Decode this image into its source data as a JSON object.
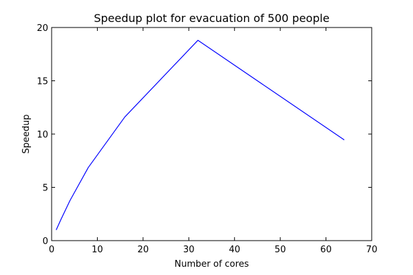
{
  "chart_data": {
    "type": "line",
    "title": "Speedup plot for evacuation of 500 people",
    "xlabel": "Number of cores",
    "ylabel": "Speedup",
    "xlim": [
      0,
      70
    ],
    "ylim": [
      0,
      20
    ],
    "xticks": [
      0,
      10,
      20,
      30,
      40,
      50,
      60,
      70
    ],
    "yticks": [
      0,
      5,
      10,
      15,
      20
    ],
    "xtick_labels": [
      "0",
      "10",
      "20",
      "30",
      "40",
      "50",
      "60",
      "70"
    ],
    "ytick_labels": [
      "0",
      "5",
      "10",
      "15",
      "20"
    ],
    "grid": false,
    "series": [
      {
        "color": "#0000ff",
        "x": [
          1,
          2,
          4,
          8,
          16,
          32,
          64
        ],
        "y": [
          1.0,
          1.95,
          3.75,
          6.85,
          11.6,
          18.8,
          9.45
        ]
      }
    ]
  }
}
